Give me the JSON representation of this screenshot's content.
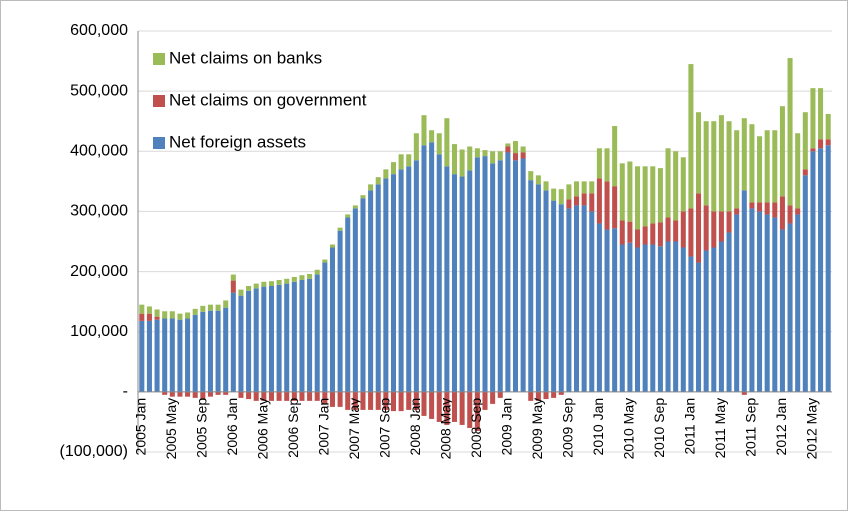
{
  "chart_data": {
    "type": "stacked_bar",
    "categories": [
      "2005 Jan",
      null,
      null,
      null,
      "2005 May",
      null,
      null,
      null,
      "2005 Sep",
      null,
      null,
      null,
      "2006 Jan",
      null,
      null,
      null,
      "2006 May",
      null,
      null,
      null,
      "2006 Sep",
      null,
      null,
      null,
      "2007 Jan",
      null,
      null,
      null,
      "2007 May",
      null,
      null,
      null,
      "2007 Sep",
      null,
      null,
      null,
      "2008 Jan",
      null,
      null,
      null,
      "2008 May",
      null,
      null,
      null,
      "2008 Sep",
      null,
      null,
      null,
      "2009 Jan",
      null,
      null,
      null,
      "2009 May",
      null,
      null,
      null,
      "2009 Sep",
      null,
      null,
      null,
      "2010 Jan",
      null,
      null,
      null,
      "2010 May",
      null,
      null,
      null,
      "2010 Sep",
      null,
      null,
      null,
      "2011 Jan",
      null,
      null,
      null,
      "2011 May",
      null,
      null,
      null,
      "2011 Sep",
      null,
      null,
      null,
      "2012 Jan",
      null,
      null,
      null,
      "2012 May",
      null,
      null
    ],
    "series": [
      {
        "name": "Net foreign assets",
        "color": "#4f81bd",
        "values": [
          118000,
          118000,
          120000,
          122000,
          122000,
          120000,
          122000,
          128000,
          133000,
          135000,
          135000,
          140000,
          165000,
          160000,
          168000,
          172000,
          175000,
          176000,
          178000,
          180000,
          183000,
          186000,
          188000,
          195000,
          215000,
          240000,
          268000,
          290000,
          305000,
          322000,
          335000,
          345000,
          355000,
          362000,
          370000,
          375000,
          385000,
          410000,
          415000,
          395000,
          375000,
          362000,
          358000,
          368000,
          390000,
          392000,
          380000,
          385000,
          398000,
          385000,
          388000,
          352000,
          345000,
          335000,
          318000,
          312000,
          305000,
          310000,
          310000,
          300000,
          280000,
          270000,
          272000,
          245000,
          248000,
          240000,
          245000,
          245000,
          242000,
          250000,
          250000,
          240000,
          225000,
          215000,
          235000,
          240000,
          250000,
          265000,
          295000,
          335000,
          305000,
          300000,
          295000,
          290000,
          270000,
          280000,
          295000,
          360000,
          400000,
          405000,
          410000
        ]
      },
      {
        "name": "Net claims on government",
        "color": "#c0504d",
        "values": [
          12000,
          12000,
          5000,
          -5000,
          -8000,
          -8000,
          -8000,
          -10000,
          -12000,
          -8000,
          -5000,
          -5000,
          20000,
          -10000,
          -12000,
          -15000,
          -15000,
          -15000,
          -15000,
          -15000,
          -15000,
          -15000,
          -15000,
          -15000,
          -20000,
          -25000,
          -25000,
          -30000,
          -30000,
          -30000,
          -30000,
          -30000,
          -30000,
          -32000,
          -32000,
          -30000,
          -30000,
          -40000,
          -45000,
          -50000,
          -55000,
          -50000,
          -55000,
          -60000,
          -65000,
          -30000,
          -20000,
          -10000,
          10000,
          12000,
          10000,
          -15000,
          -15000,
          -12000,
          -10000,
          -5000,
          15000,
          15000,
          20000,
          30000,
          75000,
          80000,
          70000,
          40000,
          35000,
          30000,
          30000,
          35000,
          40000,
          40000,
          35000,
          60000,
          80000,
          115000,
          75000,
          60000,
          50000,
          35000,
          10000,
          -5000,
          10000,
          15000,
          20000,
          25000,
          55000,
          30000,
          10000,
          10000,
          5000,
          15000,
          10000
        ]
      },
      {
        "name": "Net claims on banks",
        "color": "#9bbb59",
        "values": [
          15000,
          12000,
          12000,
          12000,
          12000,
          10000,
          10000,
          10000,
          10000,
          10000,
          10000,
          12000,
          10000,
          10000,
          8000,
          8000,
          8000,
          8000,
          8000,
          8000,
          8000,
          8000,
          8000,
          8000,
          5000,
          5000,
          5000,
          5000,
          5000,
          5000,
          10000,
          12000,
          15000,
          20000,
          25000,
          20000,
          45000,
          50000,
          20000,
          35000,
          80000,
          50000,
          45000,
          40000,
          15000,
          10000,
          20000,
          15000,
          5000,
          20000,
          10000,
          15000,
          15000,
          15000,
          20000,
          25000,
          25000,
          25000,
          20000,
          20000,
          50000,
          55000,
          100000,
          95000,
          100000,
          105000,
          100000,
          95000,
          90000,
          115000,
          115000,
          90000,
          240000,
          135000,
          140000,
          150000,
          160000,
          150000,
          130000,
          120000,
          130000,
          110000,
          120000,
          120000,
          150000,
          245000,
          125000,
          95000,
          100000,
          85000,
          42000
        ]
      }
    ],
    "ylim": [
      -100000,
      600000
    ],
    "yticks": [
      {
        "value": -100000,
        "label": "(100,000)"
      },
      {
        "value": 0,
        "label": "-"
      },
      {
        "value": 100000,
        "label": "100,000"
      },
      {
        "value": 200000,
        "label": "200,000"
      },
      {
        "value": 300000,
        "label": "300,000"
      },
      {
        "value": 400000,
        "label": "400,000"
      },
      {
        "value": 500000,
        "label": "500,000"
      },
      {
        "value": 600000,
        "label": "600,000"
      }
    ],
    "grid": true,
    "legend": "top-left"
  }
}
